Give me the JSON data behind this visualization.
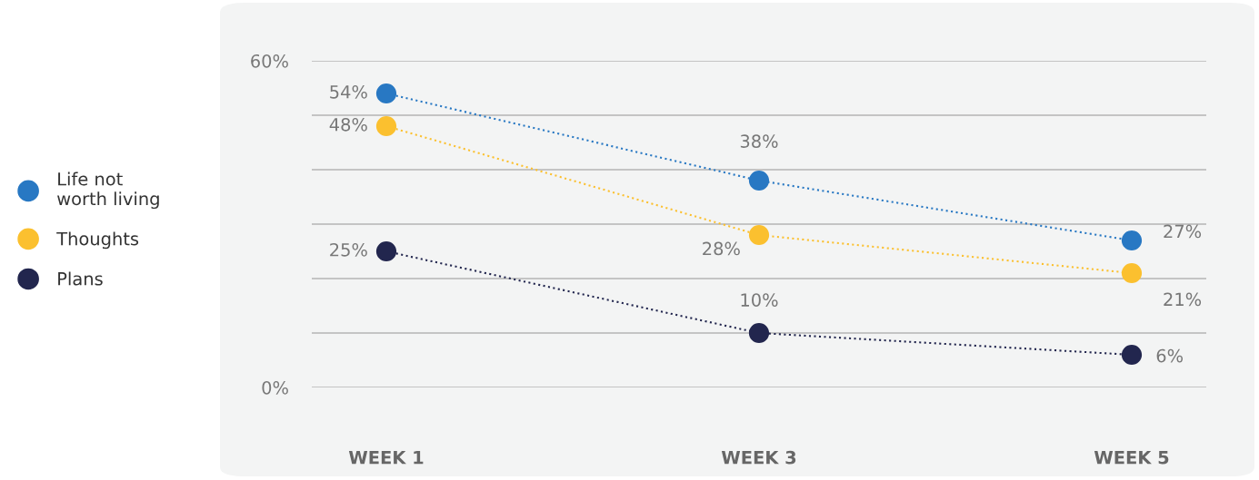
{
  "chart_data": {
    "type": "line",
    "categories": [
      "WEEK 1",
      "WEEK 3",
      "WEEK 5"
    ],
    "series": [
      {
        "name": "Life not\nworth living",
        "color": "#2878c3",
        "values": [
          54,
          38,
          27
        ],
        "value_labels": [
          "54%",
          "38%",
          "27%"
        ]
      },
      {
        "name": "Thoughts",
        "color": "#fbc02f",
        "values": [
          48,
          28,
          21
        ],
        "value_labels": [
          "48%",
          "28%",
          "21%"
        ]
      },
      {
        "name": "Plans",
        "color": "#22264e",
        "values": [
          25,
          10,
          6
        ],
        "value_labels": [
          "25%",
          "10%",
          "6%"
        ]
      }
    ],
    "ylim": [
      0,
      60
    ],
    "yticks": [
      {
        "value": 0,
        "label": "0%"
      },
      {
        "value": 10,
        "label": null
      },
      {
        "value": 20,
        "label": null
      },
      {
        "value": 30,
        "label": null
      },
      {
        "value": 40,
        "label": null
      },
      {
        "value": 50,
        "label": null
      },
      {
        "value": 60,
        "label": "60%"
      }
    ],
    "grid": "y",
    "legend": "left",
    "marker": "circle",
    "line_style": "dotted"
  }
}
